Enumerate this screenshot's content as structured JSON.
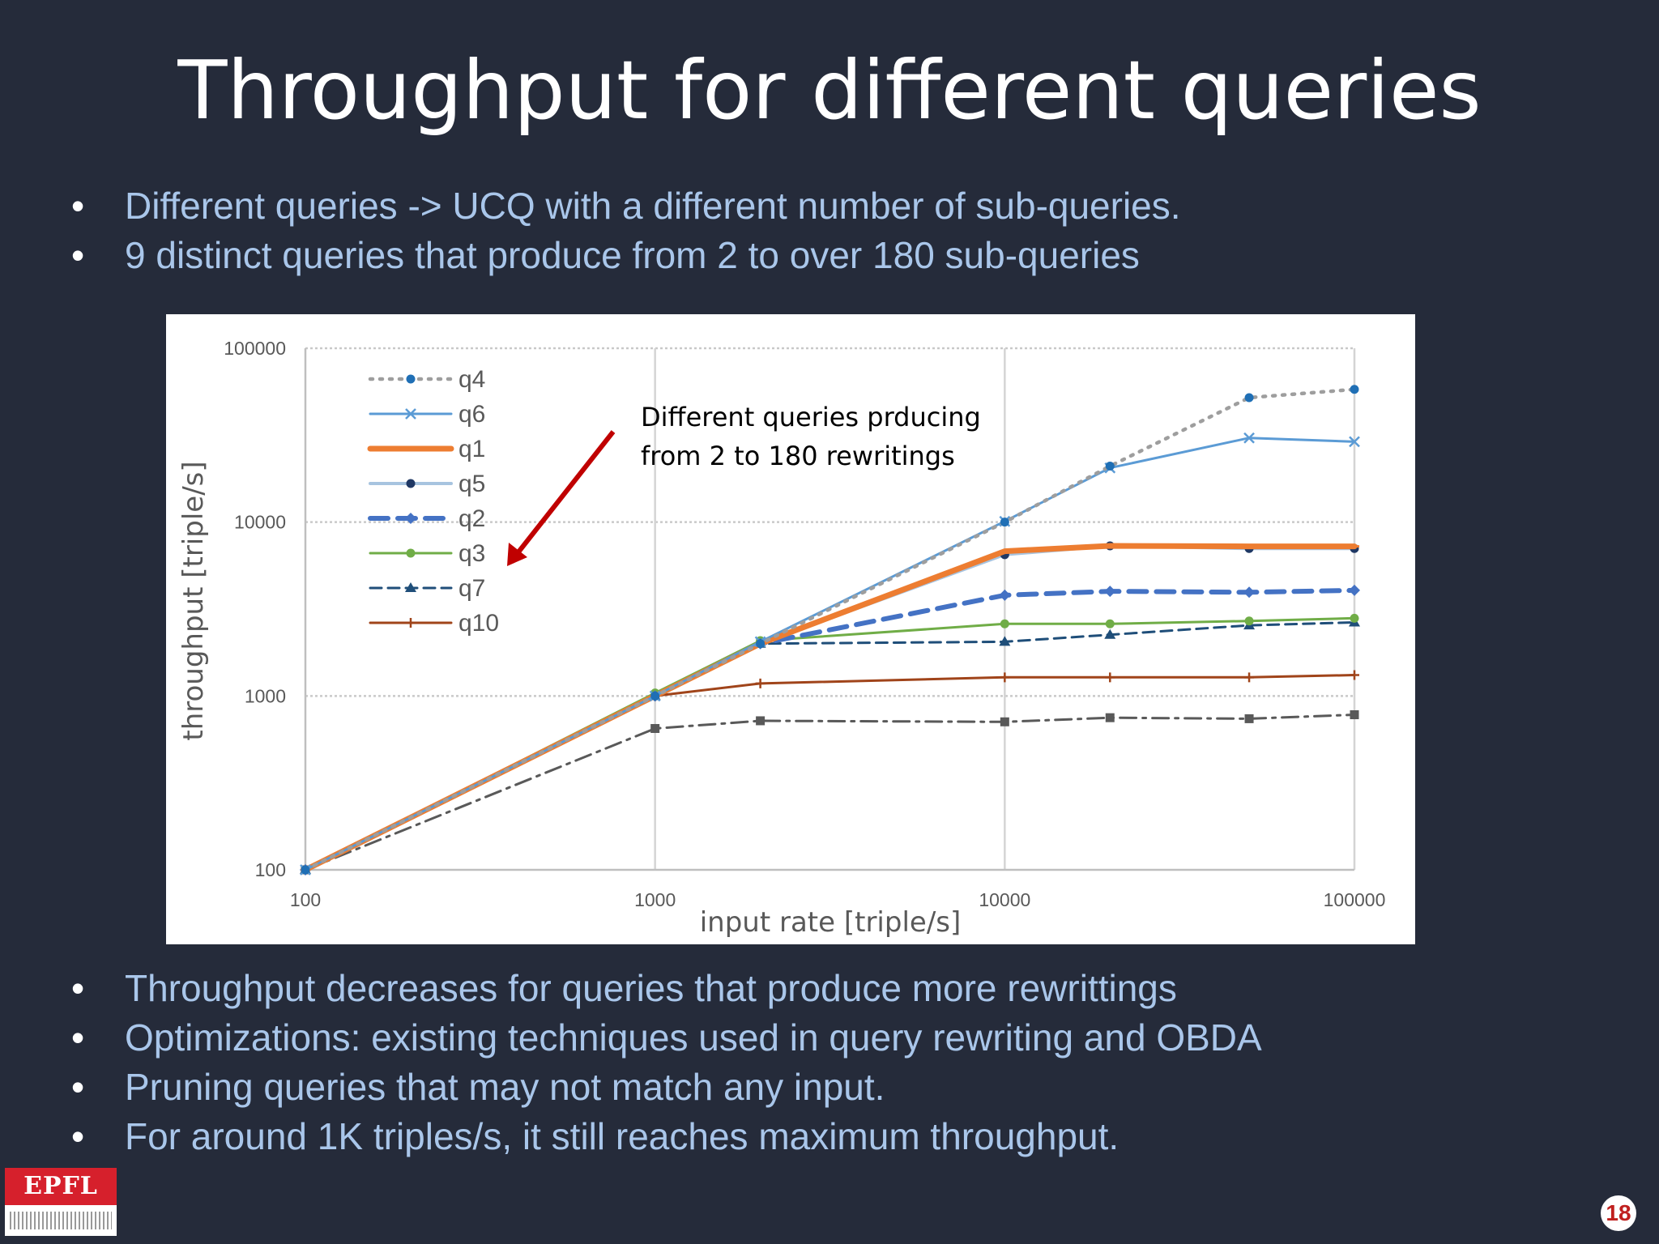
{
  "slide": {
    "title": "Throughput for different queries",
    "bullets_top": [
      "Different queries -> UCQ with a different number of sub-queries.",
      "9 distinct queries that produce from 2 to over 180 sub-queries"
    ],
    "bullets_bottom": [
      "Throughput decreases for queries that produce more rewrittings",
      "Optimizations: existing techniques used in query rewriting and OBDA",
      "Pruning queries that may not match any input.",
      "For around 1K triples/s, it still reaches maximum throughput."
    ],
    "page_number": "18",
    "logo_text": "EPFL"
  },
  "chart_data": {
    "type": "line",
    "xlabel": "input rate [triple/s]",
    "ylabel": "throughput [triple/s]",
    "xscale": "log",
    "yscale": "log",
    "xlim": [
      100,
      100000
    ],
    "ylim": [
      100,
      100000
    ],
    "x_ticks": [
      "100",
      "1000",
      "10000",
      "100000"
    ],
    "y_ticks": [
      "100",
      "1000",
      "10000",
      "100000"
    ],
    "grid": true,
    "legend_position": "top-left",
    "annotation": [
      "Different queries prducing",
      "from 2 to 180 rewritings"
    ],
    "arrow_color": "#c00000",
    "series": [
      {
        "name": "q4",
        "color": "#9e9e9e",
        "dash": "dot",
        "marker": "circle",
        "marker_color": "#1f6fb5",
        "width": 4.5,
        "x": [
          100,
          1000,
          2000,
          10000,
          20000,
          50000,
          100000
        ],
        "y": [
          100,
          1000,
          2000,
          10000,
          21000,
          52000,
          58000
        ]
      },
      {
        "name": "q6",
        "color": "#5b9bd5",
        "dash": "solid",
        "marker": "x",
        "marker_color": "#5b9bd5",
        "width": 3,
        "x": [
          100,
          1000,
          2000,
          10000,
          20000,
          50000,
          100000
        ],
        "y": [
          100,
          1000,
          2050,
          10100,
          20500,
          30500,
          29000
        ]
      },
      {
        "name": "q1",
        "color": "#ed7d31",
        "dash": "solid",
        "marker": "dash",
        "marker_color": "#ed7d31",
        "width": 7,
        "x": [
          100,
          1000,
          2000,
          10000,
          20000,
          50000,
          100000
        ],
        "y": [
          100,
          1000,
          2000,
          6800,
          7300,
          7250,
          7250
        ]
      },
      {
        "name": "q5",
        "color": "#a7c4e0",
        "dash": "solid",
        "marker": "circle",
        "marker_color": "#1f3864",
        "width": 4,
        "x": [
          100,
          1000,
          2000,
          10000,
          20000,
          50000,
          100000
        ],
        "y": [
          100,
          1000,
          2000,
          6500,
          7300,
          7050,
          7050
        ]
      },
      {
        "name": "q2",
        "color": "#4472c4",
        "dash": "longdash",
        "marker": "diamond",
        "marker_color": "#4472c4",
        "width": 6,
        "x": [
          100,
          1000,
          2000,
          10000,
          20000,
          50000,
          100000
        ],
        "y": [
          100,
          1000,
          2000,
          3800,
          4000,
          3950,
          4050
        ]
      },
      {
        "name": "q3",
        "color": "#70ad47",
        "dash": "solid",
        "marker": "circle",
        "marker_color": "#70ad47",
        "width": 3,
        "x": [
          100,
          1000,
          2000,
          10000,
          20000,
          50000,
          100000
        ],
        "y": [
          100,
          1040,
          2080,
          2600,
          2600,
          2700,
          2800
        ]
      },
      {
        "name": "q7",
        "color": "#1f4e79",
        "dash": "dash",
        "marker": "triangle",
        "marker_color": "#1f4e79",
        "width": 3,
        "x": [
          100,
          1000,
          2000,
          10000,
          20000,
          50000,
          100000
        ],
        "y": [
          100,
          1000,
          2000,
          2050,
          2250,
          2550,
          2650
        ]
      },
      {
        "name": "q10",
        "color": "#a0441a",
        "dash": "solid",
        "marker": "plus",
        "marker_color": "#a0441a",
        "width": 3,
        "x": [
          100,
          1000,
          2000,
          10000,
          20000,
          50000,
          100000
        ],
        "y": [
          100,
          1000,
          1180,
          1280,
          1280,
          1280,
          1320
        ]
      },
      {
        "color": "#595959",
        "dash": "dashdot",
        "marker": "square",
        "marker_color": "#595959",
        "width": 3,
        "x": [
          100,
          1000,
          2000,
          10000,
          20000,
          50000,
          100000
        ],
        "y": [
          100,
          650,
          720,
          710,
          750,
          740,
          780
        ]
      }
    ]
  }
}
